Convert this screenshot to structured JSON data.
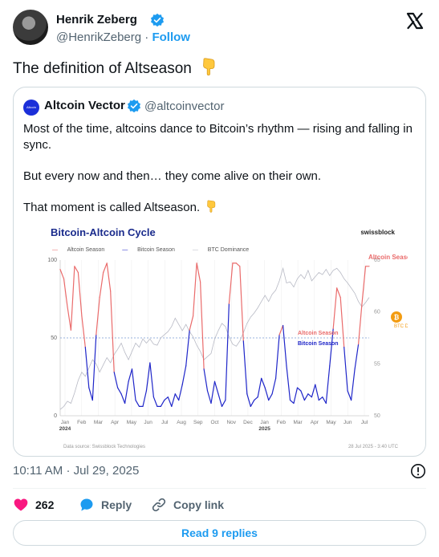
{
  "author": {
    "name": "Henrik Zeberg",
    "handle": "@HenrikZeberg",
    "separator": "·",
    "follow_label": "Follow"
  },
  "tweet": {
    "text": "The definition of Altseason"
  },
  "quote": {
    "avatar_text": "Altcoin Vector",
    "name": "Altcoin Vector",
    "handle": "@altcoinvector",
    "line1": "Most of the time, altcoins dance to Bitcoin’s rhythm — rising and falling in sync.",
    "line2": "But every now and then… they come alive on their own.",
    "line3": "That moment is called Altseason."
  },
  "chart_data": {
    "type": "line",
    "title": "Bitcoin-Altcoin Cycle",
    "brand": "swissblock",
    "legend": [
      "Altcoin Season",
      "Bitcoin Season",
      "BTC Dominance"
    ],
    "colors": {
      "altcoin": "#ea6b6b",
      "bitcoin": "#1f26c9",
      "dominance": "#b7b9c4",
      "threshold": "#7a9bd1",
      "btc_orange": "#f39c12"
    },
    "x_ticks": [
      "Jan",
      "Feb",
      "Mar",
      "Apr",
      "May",
      "Jun",
      "Jul",
      "Aug",
      "Sep",
      "Oct",
      "Nov",
      "Dec",
      "Jan",
      "Feb",
      "Mar",
      "Apr",
      "May",
      "Jun",
      "Jul"
    ],
    "year_labels": [
      "2024",
      "2025"
    ],
    "y_left_ticks": [
      "100",
      "50",
      "0"
    ],
    "y_left_range": [
      0,
      100
    ],
    "y_right_ticks": [
      "65",
      "60",
      "55",
      "50"
    ],
    "y_right_range": [
      50,
      65
    ],
    "threshold": 50,
    "annotations": {
      "altcoin_season": "Altcoin Season",
      "bitcoin_season": "Bitcoin Season",
      "altcoin_season_top": "Altcoin Season",
      "btc_dominance": "BTC Dominance"
    },
    "index_series": [
      94,
      88,
      70,
      55,
      96,
      92,
      64,
      44,
      18,
      10,
      52,
      76,
      92,
      98,
      80,
      28,
      18,
      14,
      8,
      22,
      30,
      10,
      6,
      6,
      16,
      34,
      12,
      6,
      6,
      10,
      12,
      6,
      14,
      10,
      20,
      32,
      55,
      64,
      98,
      86,
      30,
      16,
      8,
      22,
      14,
      6,
      10,
      72,
      98,
      98,
      96,
      48,
      14,
      6,
      10,
      12,
      24,
      18,
      10,
      14,
      24,
      52,
      58,
      32,
      10,
      8,
      18,
      16,
      10,
      14,
      12,
      20,
      10,
      12,
      8,
      32,
      56,
      82,
      76,
      44,
      16,
      10,
      30,
      46,
      72,
      96,
      96
    ],
    "dominance_series": [
      50.6,
      50.9,
      51.4,
      51.2,
      52.2,
      53.4,
      54.2,
      53.8,
      54.6,
      55.4,
      55.0,
      54.2,
      54.9,
      55.6,
      55.1,
      55.9,
      56.4,
      57.0,
      56.1,
      55.4,
      56.2,
      57.0,
      56.6,
      57.4,
      57.0,
      57.4,
      56.9,
      56.8,
      57.5,
      57.8,
      58.1,
      58.6,
      59.4,
      58.8,
      58.2,
      58.8,
      58.1,
      57.6,
      56.8,
      56.2,
      55.4,
      55.7,
      56.0,
      57.4,
      58.2,
      58.9,
      58.6,
      57.6,
      56.9,
      56.7,
      57.2,
      58.0,
      58.9,
      59.5,
      59.9,
      60.4,
      61.0,
      61.6,
      61.0,
      61.7,
      62.1,
      63.0,
      64.2,
      62.8,
      62.9,
      62.4,
      63.2,
      63.6,
      63.2,
      64.0,
      63.0,
      63.4,
      63.8,
      63.6,
      64.1,
      63.5,
      64.0,
      64.2,
      63.8,
      63.2,
      62.8,
      62.3,
      61.8,
      61.0,
      60.5,
      60.9,
      61.4
    ],
    "source": "Data source: Swissblock Technologies",
    "timestamp": "28 Jul 2025 - 3:40 UTC"
  },
  "meta": {
    "time": "10:11 AM",
    "separator": "·",
    "date": "Jul 29, 2025"
  },
  "actions": {
    "likes": "262",
    "reply_label": "Reply",
    "copy_label": "Copy link"
  },
  "replies_button": "Read 9 replies",
  "icons": [
    "verified-badge-icon",
    "x-logo-icon",
    "pointing-down-emoji-icon",
    "info-icon",
    "heart-icon",
    "reply-bubble-icon",
    "link-icon",
    "bitcoin-icon"
  ]
}
